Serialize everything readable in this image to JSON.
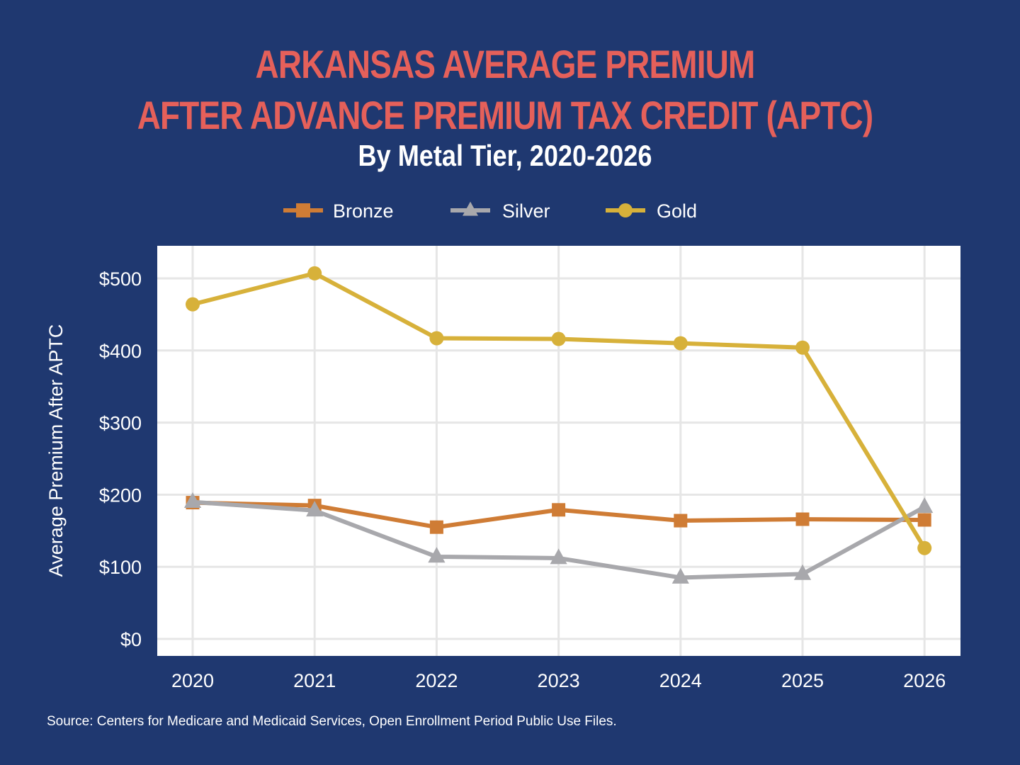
{
  "title_lines": [
    "ARKANSAS AVERAGE PREMIUM",
    "AFTER ADVANCE PREMIUM TAX CREDIT (APTC)"
  ],
  "subtitle": "By Metal Tier, 2020-2026",
  "source": "Source: Centers for Medicare and Medicaid Services, Open Enrollment Period Public Use Files.",
  "colors": {
    "background": "#1f3870",
    "title": "#e5605a",
    "plot_background": "#ffffff",
    "grid": "#e6e6e6"
  },
  "chart_data": {
    "type": "line",
    "title": "ARKANSAS AVERAGE PREMIUM AFTER ADVANCE PREMIUM TAX CREDIT (APTC)",
    "subtitle": "By Metal Tier, 2020-2026",
    "xlabel": "",
    "ylabel": "Average Premium After APTC",
    "x": [
      "2020",
      "2021",
      "2022",
      "2023",
      "2024",
      "2025",
      "2026"
    ],
    "ylim": [
      -20,
      545
    ],
    "yticks": [
      0,
      100,
      200,
      300,
      400,
      500
    ],
    "ytick_labels": [
      "$0",
      "$100",
      "$200",
      "$300",
      "$400",
      "$500"
    ],
    "grid": true,
    "legend_position": "top",
    "series": [
      {
        "name": "Bronze",
        "color": "#cf7c35",
        "marker": "square",
        "values": [
          189,
          185,
          155,
          179,
          164,
          166,
          165
        ]
      },
      {
        "name": "Silver",
        "color": "#a8a8ac",
        "marker": "triangle",
        "values": [
          190,
          178,
          114,
          112,
          85,
          90,
          183
        ]
      },
      {
        "name": "Gold",
        "color": "#d7b13a",
        "marker": "circle",
        "values": [
          464,
          507,
          417,
          416,
          410,
          404,
          126
        ]
      }
    ]
  }
}
